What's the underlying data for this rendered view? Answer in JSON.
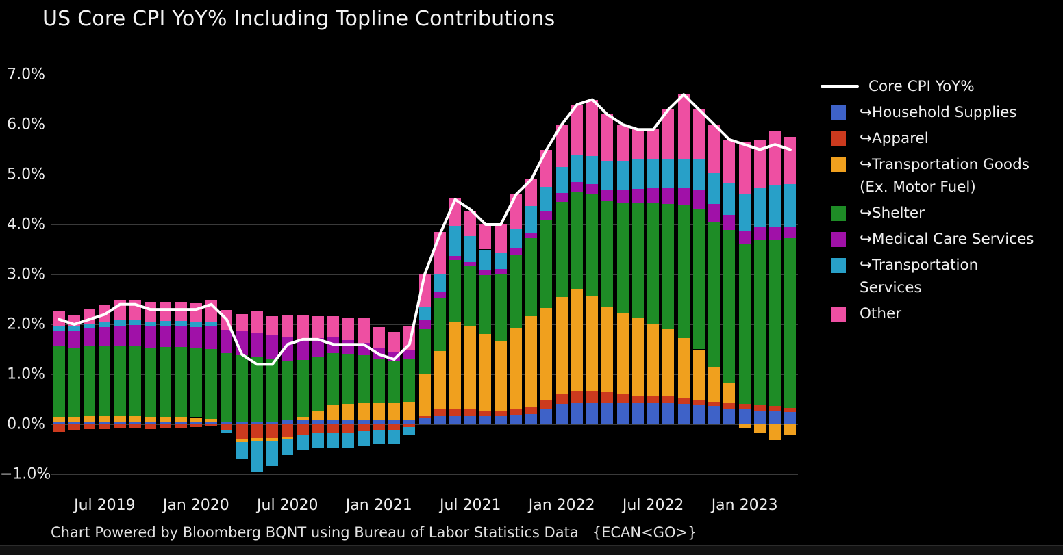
{
  "title": "US Core CPI YoY% Including Topline Contributions",
  "footer": "Chart Powered by Bloomberg BQNT using Bureau of Labor Statistics Data   {ECAN<GO>}",
  "colors": {
    "background": "#000000",
    "text": "#f0f0f0",
    "gridline": "#3a3a3a",
    "core_line": "#ffffff"
  },
  "chart_data": {
    "type": "bar",
    "subtype": "stacked-bar-with-line",
    "title": "US Core CPI YoY% Including Topline Contributions",
    "grid": "horizontal",
    "legend_position": "right",
    "ylim": [
      -1.35,
      7.35
    ],
    "y_tick_values": [
      7,
      6,
      5,
      4,
      3,
      2,
      1,
      0,
      -1
    ],
    "y_tick_labels": [
      "7.0%",
      "6.0%",
      "5.0%",
      "4.0%",
      "3.0%",
      "2.0%",
      "1.0%",
      "0.0%",
      "−1.0%"
    ],
    "x": [
      "2019-04",
      "2019-05",
      "2019-06",
      "2019-07",
      "2019-08",
      "2019-09",
      "2019-10",
      "2019-11",
      "2019-12",
      "2020-01",
      "2020-02",
      "2020-03",
      "2020-04",
      "2020-05",
      "2020-06",
      "2020-07",
      "2020-08",
      "2020-09",
      "2020-10",
      "2020-11",
      "2020-12",
      "2021-01",
      "2021-02",
      "2021-03",
      "2021-04",
      "2021-05",
      "2021-06",
      "2021-07",
      "2021-08",
      "2021-09",
      "2021-10",
      "2021-11",
      "2021-12",
      "2022-01",
      "2022-02",
      "2022-03",
      "2022-04",
      "2022-05",
      "2022-06",
      "2022-07",
      "2022-08",
      "2022-09",
      "2022-10",
      "2022-11",
      "2022-12",
      "2023-01",
      "2023-02",
      "2023-03",
      "2023-04"
    ],
    "x_tick_labels": [
      {
        "label": "Jul 2019",
        "month_index": 3
      },
      {
        "label": "Jan 2020",
        "month_index": 9
      },
      {
        "label": "Jul 2020",
        "month_index": 15
      },
      {
        "label": "Jan 2021",
        "month_index": 21
      },
      {
        "label": "Jul 2021",
        "month_index": 27
      },
      {
        "label": "Jan 2022",
        "month_index": 33
      },
      {
        "label": "Jul 2022",
        "month_index": 39
      },
      {
        "label": "Jan 2023",
        "month_index": 45
      }
    ],
    "line_series": {
      "name": "Core CPI YoY%",
      "color": "#ffffff",
      "values": [
        2.1,
        2.0,
        2.1,
        2.2,
        2.4,
        2.4,
        2.3,
        2.3,
        2.3,
        2.3,
        2.4,
        2.1,
        1.4,
        1.2,
        1.2,
        1.6,
        1.7,
        1.7,
        1.6,
        1.6,
        1.6,
        1.4,
        1.3,
        1.6,
        3.0,
        3.8,
        4.5,
        4.3,
        4.0,
        4.0,
        4.6,
        4.9,
        5.5,
        6.0,
        6.4,
        6.5,
        6.2,
        6.0,
        5.9,
        5.9,
        6.3,
        6.6,
        6.3,
        6.0,
        5.7,
        5.6,
        5.5,
        5.6,
        5.5
      ]
    },
    "series": [
      {
        "name": "↪Household Supplies",
        "color": "#3e62c8",
        "values": [
          0.04,
          0.04,
          0.04,
          0.04,
          0.04,
          0.04,
          0.04,
          0.05,
          0.05,
          0.05,
          0.05,
          0.05,
          0.06,
          0.06,
          0.06,
          0.08,
          0.08,
          0.1,
          0.1,
          0.1,
          0.1,
          0.1,
          0.1,
          0.1,
          0.12,
          0.16,
          0.16,
          0.16,
          0.16,
          0.16,
          0.18,
          0.2,
          0.3,
          0.4,
          0.42,
          0.42,
          0.42,
          0.42,
          0.42,
          0.42,
          0.42,
          0.4,
          0.38,
          0.35,
          0.32,
          0.3,
          0.28,
          0.26,
          0.24
        ]
      },
      {
        "name": "↪Apparel",
        "color": "#cc3a1e",
        "values": [
          -0.15,
          -0.12,
          -0.1,
          -0.1,
          -0.08,
          -0.08,
          -0.1,
          -0.08,
          -0.08,
          -0.06,
          -0.04,
          -0.12,
          -0.29,
          -0.28,
          -0.28,
          -0.25,
          -0.22,
          -0.18,
          -0.16,
          -0.16,
          -0.14,
          -0.12,
          -0.12,
          -0.06,
          0.05,
          0.15,
          0.16,
          0.14,
          0.12,
          0.12,
          0.12,
          0.14,
          0.18,
          0.2,
          0.24,
          0.24,
          0.22,
          0.18,
          0.16,
          0.15,
          0.14,
          0.13,
          0.12,
          0.1,
          0.1,
          0.1,
          0.1,
          0.09,
          0.09
        ]
      },
      {
        "name": "↪Transportation Goods (Ex. Motor Fuel)",
        "color": "#f0a01e",
        "values": [
          0.1,
          0.1,
          0.12,
          0.12,
          0.12,
          0.12,
          0.1,
          0.1,
          0.1,
          0.08,
          0.06,
          0.0,
          -0.06,
          -0.05,
          -0.06,
          -0.04,
          0.06,
          0.16,
          0.28,
          0.3,
          0.33,
          0.32,
          0.32,
          0.35,
          0.85,
          1.16,
          1.73,
          1.66,
          1.53,
          1.39,
          1.62,
          1.83,
          1.85,
          1.95,
          2.05,
          1.9,
          1.7,
          1.62,
          1.55,
          1.45,
          1.35,
          1.2,
          1.0,
          0.7,
          0.42,
          -0.08,
          -0.18,
          -0.32,
          -0.22
        ]
      },
      {
        "name": "↪Shelter",
        "color": "#1e8c26",
        "values": [
          1.42,
          1.4,
          1.42,
          1.42,
          1.42,
          1.42,
          1.4,
          1.4,
          1.4,
          1.4,
          1.4,
          1.38,
          1.32,
          1.28,
          1.25,
          1.2,
          1.15,
          1.1,
          1.05,
          1.0,
          0.95,
          0.9,
          0.85,
          0.85,
          0.88,
          1.05,
          1.24,
          1.21,
          1.18,
          1.34,
          1.48,
          1.55,
          1.75,
          1.9,
          1.95,
          2.05,
          2.12,
          2.2,
          2.3,
          2.4,
          2.5,
          2.65,
          2.8,
          2.9,
          3.05,
          3.2,
          3.3,
          3.35,
          3.4
        ]
      },
      {
        "name": "↪Medical Care Services",
        "color": "#a011a8",
        "values": [
          0.3,
          0.32,
          0.34,
          0.36,
          0.38,
          0.4,
          0.42,
          0.42,
          0.42,
          0.42,
          0.45,
          0.46,
          0.48,
          0.5,
          0.48,
          0.46,
          0.42,
          0.36,
          0.32,
          0.28,
          0.25,
          0.2,
          0.18,
          0.18,
          0.18,
          0.14,
          0.08,
          0.08,
          0.1,
          0.1,
          0.12,
          0.12,
          0.18,
          0.18,
          0.19,
          0.2,
          0.24,
          0.26,
          0.28,
          0.3,
          0.33,
          0.36,
          0.4,
          0.36,
          0.3,
          0.28,
          0.26,
          0.24,
          0.22
        ]
      },
      {
        "name": "↪Transportation Services",
        "color": "#28a0c8",
        "values": [
          0.1,
          0.1,
          0.1,
          0.12,
          0.12,
          0.1,
          0.1,
          0.1,
          0.1,
          0.1,
          0.1,
          -0.05,
          -0.35,
          -0.62,
          -0.49,
          -0.33,
          -0.3,
          -0.3,
          -0.3,
          -0.3,
          -0.28,
          -0.28,
          -0.28,
          -0.14,
          0.28,
          0.34,
          0.6,
          0.52,
          0.41,
          0.31,
          0.38,
          0.53,
          0.5,
          0.52,
          0.54,
          0.56,
          0.58,
          0.6,
          0.6,
          0.58,
          0.56,
          0.58,
          0.6,
          0.62,
          0.65,
          0.72,
          0.8,
          0.85,
          0.86
        ]
      },
      {
        "name": "Other",
        "color": "#ee4fa2",
        "values": [
          0.3,
          0.22,
          0.3,
          0.34,
          0.4,
          0.4,
          0.38,
          0.38,
          0.38,
          0.38,
          0.42,
          0.4,
          0.35,
          0.42,
          0.38,
          0.45,
          0.48,
          0.45,
          0.42,
          0.45,
          0.5,
          0.42,
          0.4,
          0.48,
          0.64,
          0.85,
          0.55,
          0.5,
          0.52,
          0.6,
          0.71,
          0.55,
          0.74,
          0.83,
          1.01,
          1.13,
          0.92,
          0.72,
          0.59,
          0.6,
          1.0,
          1.28,
          1.0,
          0.97,
          0.86,
          1.05,
          0.96,
          1.08,
          0.94
        ]
      }
    ]
  }
}
